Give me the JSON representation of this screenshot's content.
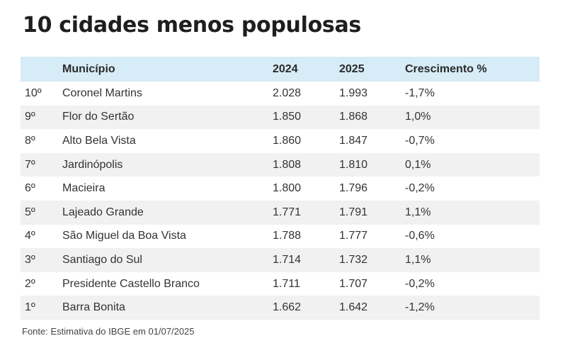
{
  "title": "10 cidades menos populosas",
  "table": {
    "headers": {
      "rank": "",
      "city": "Município",
      "y2024": "2024",
      "y2025": "2025",
      "growth": "Crescimento %"
    },
    "rows": [
      {
        "rank": "10º",
        "city": "Coronel Martins",
        "y2024": "2.028",
        "y2025": "1.993",
        "growth": "-1,7%"
      },
      {
        "rank": "9º",
        "city": "Flor do Sertão",
        "y2024": "1.850",
        "y2025": "1.868",
        "growth": "1,0%"
      },
      {
        "rank": "8º",
        "city": "Alto Bela Vista",
        "y2024": "1.860",
        "y2025": "1.847",
        "growth": "-0,7%"
      },
      {
        "rank": "7º",
        "city": "Jardinópolis",
        "y2024": "1.808",
        "y2025": "1.810",
        "growth": "0,1%"
      },
      {
        "rank": "6º",
        "city": "Macieira",
        "y2024": "1.800",
        "y2025": "1.796",
        "growth": "-0,2%"
      },
      {
        "rank": "5º",
        "city": "Lajeado Grande",
        "y2024": "1.771",
        "y2025": "1.791",
        "growth": "1,1%"
      },
      {
        "rank": "4º",
        "city": "São Miguel da Boa Vista",
        "y2024": "1.788",
        "y2025": "1.777",
        "growth": "-0,6%"
      },
      {
        "rank": "3º",
        "city": "Santiago do Sul",
        "y2024": "1.714",
        "y2025": "1.732",
        "growth": "1,1%"
      },
      {
        "rank": "2º",
        "city": "Presidente Castello Branco",
        "y2024": "1.711",
        "y2025": "1.707",
        "growth": "-0,2%"
      },
      {
        "rank": "1º",
        "city": "Barra Bonita",
        "y2024": "1.662",
        "y2025": "1.642",
        "growth": "-1,2%"
      }
    ]
  },
  "source": "Fonte: Estimativa do IBGE em 01/07/2025",
  "colors": {
    "header_bg": "#d6ecf6",
    "stripe_bg": "#f1f1f1"
  }
}
